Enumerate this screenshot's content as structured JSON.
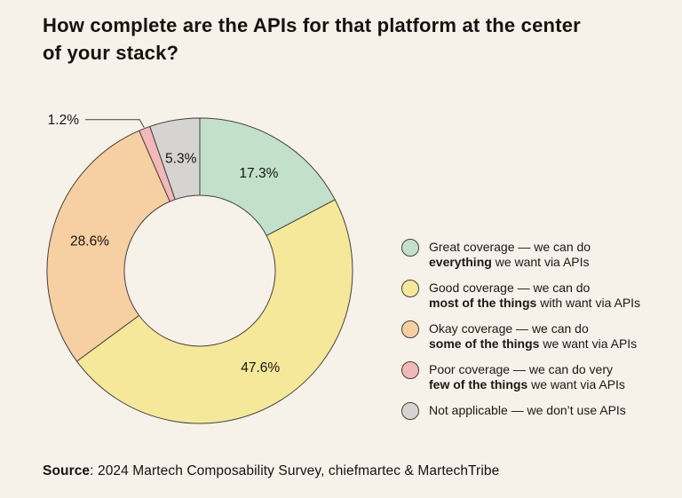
{
  "header": {
    "title_line1": "How complete are the APIs for that platform at the center",
    "title_line2": "of your stack?"
  },
  "chart_data": {
    "type": "pie",
    "subtype": "donut",
    "title": "How complete are the APIs for that platform at the center of your stack?",
    "categories": [
      "Great coverage",
      "Good coverage",
      "Okay coverage",
      "Poor coverage",
      "Not applicable"
    ],
    "values": [
      17.3,
      47.6,
      28.6,
      1.2,
      5.3
    ],
    "value_labels": [
      "17.3%",
      "47.6%",
      "28.6%",
      "1.2%",
      "5.3%"
    ],
    "colors": [
      "#c3e1ca",
      "#f6e89b",
      "#f6cfa2",
      "#f2b8ba",
      "#d5d4d2"
    ],
    "slice_outline_color": "#45413a",
    "label_color": "#16130e",
    "start_angle_deg": 0,
    "direction": "clockwise",
    "inner_radius_ratio": 0.494,
    "outside_labels": [
      false,
      false,
      false,
      true,
      false
    ],
    "legend_position": "right",
    "background_color": "#f6f1e9"
  },
  "legend": {
    "items": [
      {
        "id": "great-coverage",
        "color": "#c3e1ca",
        "line1": "Great coverage — we can do",
        "line2_bold": "everything",
        "line2_rest": " we want via APIs"
      },
      {
        "id": "good-coverage",
        "color": "#f6e89b",
        "line1": "Good coverage — we can do",
        "line2_bold": "most of the things",
        "line2_rest": " with want via APIs"
      },
      {
        "id": "okay-coverage",
        "color": "#f6cfa2",
        "line1": "Okay coverage — we can do",
        "line2_bold": "some of the things",
        "line2_rest": " we want via APIs"
      },
      {
        "id": "poor-coverage",
        "color": "#f2b8ba",
        "line1": "Poor coverage — we can do very",
        "line2_bold": "few of the things",
        "line2_rest": " we want via APIs"
      },
      {
        "id": "not-applicable",
        "color": "#d5d4d2",
        "line1": "Not applicable — we don’t use APIs",
        "line2_bold": "",
        "line2_rest": ""
      }
    ]
  },
  "footer": {
    "source_label": "Source",
    "source_rest": ": 2024 Martech Composability Survey, chiefmartec & MartechTribe"
  }
}
